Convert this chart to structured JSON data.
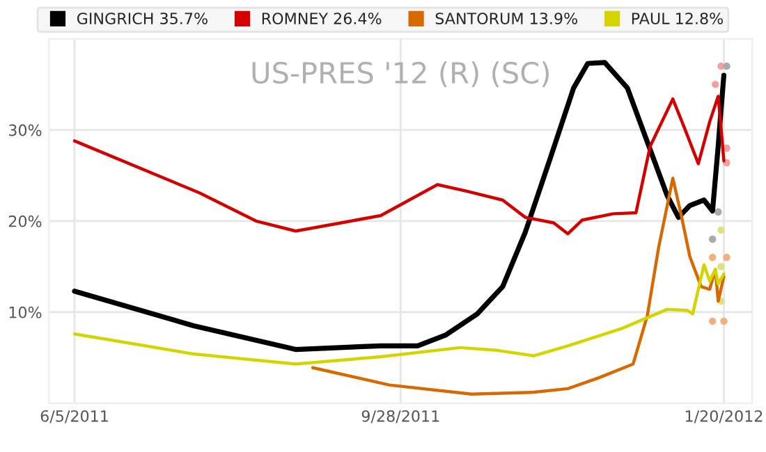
{
  "chart_data": {
    "type": "line",
    "title": "US-PRES '12 (R) (SC)",
    "xlim": [
      "2011-05-27",
      "2012-01-30"
    ],
    "xticks": [
      {
        "value": "2011-06-05",
        "label": "6/5/2011"
      },
      {
        "value": "2011-09-28",
        "label": "9/28/2011"
      },
      {
        "value": "2012-01-20",
        "label": "1/20/2012"
      }
    ],
    "ylim": [
      0,
      40
    ],
    "yticks": [
      {
        "value": 10,
        "label": "10%"
      },
      {
        "value": 20,
        "label": "20%"
      },
      {
        "value": 30,
        "label": "30%"
      }
    ],
    "grid": true,
    "legend": "top",
    "line_style": "solid",
    "marker": "none",
    "series": [
      {
        "name": "GINGRICH 35.7%",
        "color": "#000000",
        "x": [
          "2011-06-05",
          "2011-07-17",
          "2011-08-22",
          "2011-09-21",
          "2011-10-04",
          "2011-10-14",
          "2011-10-25",
          "2011-11-03",
          "2011-11-11",
          "2011-11-20",
          "2011-11-28",
          "2011-12-03",
          "2011-12-09",
          "2011-12-17",
          "2011-12-24",
          "2011-12-31",
          "2012-01-04",
          "2012-01-08",
          "2012-01-13",
          "2012-01-16",
          "2012-01-18",
          "2012-01-19",
          "2012-01-20"
        ],
        "values": [
          12.3,
          8.5,
          5.9,
          6.3,
          6.3,
          7.5,
          9.8,
          12.8,
          18.8,
          27.1,
          34.6,
          37.3,
          37.4,
          34.6,
          28.7,
          22.8,
          20.4,
          21.7,
          22.3,
          21.1,
          28.2,
          32.2,
          36.0
        ]
      },
      {
        "name": "ROMNEY 26.4%",
        "color": "#d40000",
        "x": [
          "2011-06-05",
          "2011-07-19",
          "2011-08-08",
          "2011-08-22",
          "2011-09-07",
          "2011-09-21",
          "2011-10-11",
          "2011-10-21",
          "2011-11-03",
          "2011-11-11",
          "2011-11-21",
          "2011-11-26",
          "2011-12-01",
          "2011-12-12",
          "2011-12-20",
          "2011-12-25",
          "2012-01-02",
          "2012-01-06",
          "2012-01-11",
          "2012-01-15",
          "2012-01-18",
          "2012-01-19",
          "2012-01-20"
        ],
        "values": [
          28.8,
          23.1,
          20.0,
          18.9,
          19.8,
          20.6,
          24.0,
          23.3,
          22.3,
          20.4,
          19.8,
          18.6,
          20.1,
          20.8,
          20.9,
          28.2,
          33.4,
          30.3,
          26.3,
          30.9,
          33.7,
          30.3,
          26.6
        ]
      },
      {
        "name": "SANTORUM 13.9%",
        "color": "#d66a00",
        "x": [
          "2011-08-28",
          "2011-09-24",
          "2011-10-23",
          "2011-11-14",
          "2011-11-26",
          "2011-12-07",
          "2011-12-19",
          "2011-12-24",
          "2011-12-28",
          "2012-01-02",
          "2012-01-05",
          "2012-01-08",
          "2012-01-12",
          "2012-01-15",
          "2012-01-17",
          "2012-01-18",
          "2012-01-20"
        ],
        "values": [
          3.9,
          2.0,
          1.0,
          1.2,
          1.6,
          2.8,
          4.3,
          9.6,
          17.1,
          24.7,
          20.6,
          16.1,
          12.8,
          12.5,
          14.7,
          11.2,
          13.9
        ]
      },
      {
        "name": "PAUL 12.8%",
        "color": "#d4d400",
        "x": [
          "2011-06-05",
          "2011-07-17",
          "2011-08-22",
          "2011-09-21",
          "2011-10-19",
          "2011-11-01",
          "2011-11-14",
          "2011-11-26",
          "2011-12-15",
          "2011-12-31",
          "2012-01-07",
          "2012-01-09",
          "2012-01-13",
          "2012-01-15",
          "2012-01-17",
          "2012-01-18",
          "2012-01-20"
        ],
        "values": [
          7.6,
          5.4,
          4.3,
          5.1,
          6.1,
          5.8,
          5.2,
          6.3,
          8.2,
          10.3,
          10.2,
          9.8,
          15.2,
          13.4,
          14.7,
          13.1,
          14.2
        ]
      },
      {
        "type": "scatter",
        "marker": "circle",
        "color": "#f4a0a0",
        "x": [
          "2012-01-19",
          "2012-01-17",
          "2012-01-21",
          "2012-01-21"
        ],
        "values": [
          37,
          35,
          28,
          26.4
        ]
      },
      {
        "type": "scatter",
        "marker": "circle",
        "color": "#aaaaaa",
        "x": [
          "2012-01-21",
          "2012-01-16",
          "2012-01-18"
        ],
        "values": [
          37,
          18,
          21
        ]
      },
      {
        "type": "scatter",
        "marker": "circle",
        "color": "#f0b080",
        "x": [
          "2012-01-16",
          "2012-01-21",
          "2012-01-16",
          "2012-01-20"
        ],
        "values": [
          16,
          16,
          9,
          9
        ]
      },
      {
        "type": "scatter",
        "marker": "circle",
        "color": "#e0e080",
        "x": [
          "2012-01-19",
          "2012-01-19",
          "2012-01-19"
        ],
        "values": [
          19,
          15,
          11.2
        ]
      }
    ]
  }
}
